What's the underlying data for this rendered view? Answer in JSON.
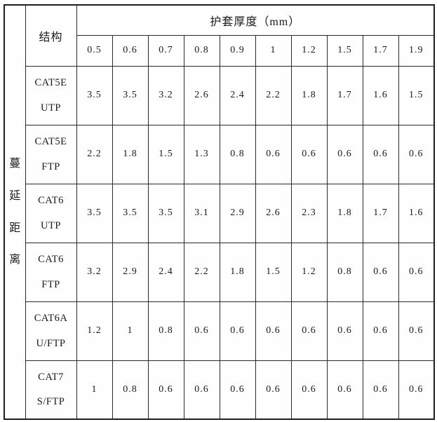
{
  "page": {
    "background": "#ffffff",
    "border_color": "#1f1f1f",
    "text_color": "#1a1a1a"
  },
  "table": {
    "row_axis_label": "蔓延距离",
    "structure_header": "结构",
    "thickness_header": "护套厚度（mm）",
    "col_headers": [
      "0.5",
      "0.6",
      "0.7",
      "0.8",
      "0.9",
      "1",
      "1.2",
      "1.5",
      "1.7",
      "1.9"
    ],
    "rows": [
      {
        "label": [
          "CAT5E",
          "UTP"
        ],
        "values": [
          "3.5",
          "3.5",
          "3.2",
          "2.6",
          "2.4",
          "2.2",
          "1.8",
          "1.7",
          "1.6",
          "1.5"
        ]
      },
      {
        "label": [
          "CAT5E",
          "FTP"
        ],
        "values": [
          "2.2",
          "1.8",
          "1.5",
          "1.3",
          "0.8",
          "0.6",
          "0.6",
          "0.6",
          "0.6",
          "0.6"
        ]
      },
      {
        "label": [
          "CAT6",
          "UTP"
        ],
        "values": [
          "3.5",
          "3.5",
          "3.5",
          "3.1",
          "2.9",
          "2.6",
          "2.3",
          "1.8",
          "1.7",
          "1.6"
        ]
      },
      {
        "label": [
          "CAT6",
          "FTP"
        ],
        "values": [
          "3.2",
          "2.9",
          "2.4",
          "2.2",
          "1.8",
          "1.5",
          "1.2",
          "0.8",
          "0.6",
          "0.6"
        ]
      },
      {
        "label": [
          "CAT6A",
          "U/FTP"
        ],
        "values": [
          "1.2",
          "1",
          "0.8",
          "0.6",
          "0.6",
          "0.6",
          "0.6",
          "0.6",
          "0.6",
          "0.6"
        ]
      },
      {
        "label": [
          "CAT7",
          "S/FTP"
        ],
        "values": [
          "1",
          "0.8",
          "0.6",
          "0.6",
          "0.6",
          "0.6",
          "0.6",
          "0.6",
          "0.6",
          "0.6"
        ]
      }
    ]
  }
}
